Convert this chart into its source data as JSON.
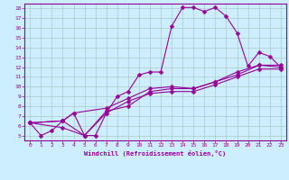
{
  "title": "",
  "xlabel": "Windchill (Refroidissement éolien,°C)",
  "ylabel": "",
  "xlim": [
    -0.5,
    23.5
  ],
  "ylim": [
    4.5,
    18.5
  ],
  "yticks": [
    5,
    6,
    7,
    8,
    9,
    10,
    11,
    12,
    13,
    14,
    15,
    16,
    17,
    18
  ],
  "xticks": [
    0,
    1,
    2,
    3,
    4,
    5,
    6,
    7,
    8,
    9,
    10,
    11,
    12,
    13,
    14,
    15,
    16,
    17,
    18,
    19,
    20,
    21,
    22,
    23
  ],
  "color": "#990099",
  "bg_color": "#cceeff",
  "grid_color": "#aacccc",
  "line1": [
    [
      0,
      6.3
    ],
    [
      1,
      5.0
    ],
    [
      2,
      5.5
    ],
    [
      3,
      6.5
    ],
    [
      4,
      7.3
    ],
    [
      5,
      5.0
    ],
    [
      6,
      5.0
    ],
    [
      7,
      7.3
    ],
    [
      8,
      9.0
    ],
    [
      9,
      9.5
    ],
    [
      10,
      11.2
    ],
    [
      11,
      11.5
    ],
    [
      12,
      11.5
    ],
    [
      13,
      16.2
    ],
    [
      14,
      18.1
    ],
    [
      15,
      18.1
    ],
    [
      16,
      17.7
    ],
    [
      17,
      18.1
    ],
    [
      18,
      17.2
    ],
    [
      19,
      15.5
    ],
    [
      20,
      12.1
    ],
    [
      21,
      13.5
    ],
    [
      22,
      13.1
    ],
    [
      23,
      12.0
    ]
  ],
  "line2": [
    [
      0,
      6.3
    ],
    [
      3,
      6.5
    ],
    [
      5,
      5.0
    ],
    [
      7,
      7.5
    ],
    [
      9,
      8.0
    ],
    [
      11,
      9.5
    ],
    [
      13,
      9.8
    ],
    [
      15,
      9.8
    ],
    [
      17,
      10.5
    ],
    [
      19,
      11.2
    ],
    [
      21,
      12.2
    ],
    [
      23,
      12.0
    ]
  ],
  "line3": [
    [
      0,
      6.3
    ],
    [
      3,
      5.8
    ],
    [
      5,
      5.0
    ],
    [
      7,
      7.3
    ],
    [
      9,
      8.5
    ],
    [
      11,
      9.3
    ],
    [
      13,
      9.5
    ],
    [
      15,
      9.5
    ],
    [
      17,
      10.2
    ],
    [
      19,
      11.0
    ],
    [
      21,
      11.8
    ],
    [
      23,
      11.8
    ]
  ],
  "line4": [
    [
      0,
      6.3
    ],
    [
      3,
      6.5
    ],
    [
      4,
      7.3
    ],
    [
      7,
      7.8
    ],
    [
      9,
      8.8
    ],
    [
      11,
      9.8
    ],
    [
      13,
      10.0
    ],
    [
      15,
      9.8
    ],
    [
      17,
      10.5
    ],
    [
      19,
      11.5
    ],
    [
      21,
      12.2
    ],
    [
      23,
      12.2
    ]
  ]
}
